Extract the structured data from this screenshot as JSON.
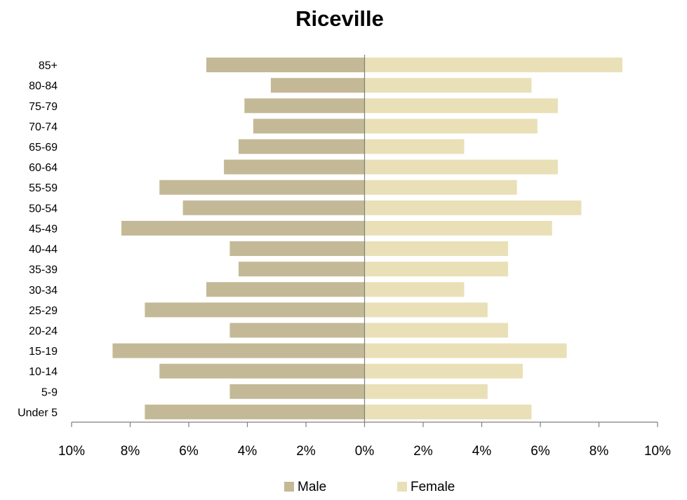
{
  "chart_data": {
    "type": "bar",
    "orientation": "horizontal",
    "title": "Riceville",
    "categories": [
      "Under 5",
      "5-9",
      "10-14",
      "15-19",
      "20-24",
      "25-29",
      "30-34",
      "35-39",
      "40-44",
      "45-49",
      "50-54",
      "55-59",
      "60-64",
      "65-69",
      "70-74",
      "75-79",
      "80-84",
      "85+"
    ],
    "series": [
      {
        "name": "Male",
        "color": "#c4b996",
        "values": [
          7.5,
          4.6,
          7.0,
          8.6,
          4.6,
          7.5,
          5.4,
          4.3,
          4.6,
          8.3,
          6.2,
          7.0,
          4.8,
          4.3,
          3.8,
          4.1,
          3.2,
          5.4
        ]
      },
      {
        "name": "Female",
        "color": "#e9e0b7",
        "values": [
          5.7,
          4.2,
          5.4,
          6.9,
          4.9,
          4.2,
          3.4,
          4.9,
          4.9,
          6.4,
          7.4,
          5.2,
          6.6,
          3.4,
          5.9,
          6.6,
          5.7,
          8.8
        ]
      }
    ],
    "xlim": [
      -10,
      10
    ],
    "x_ticks": [
      -10,
      -8,
      -6,
      -4,
      -2,
      0,
      2,
      4,
      6,
      8,
      10
    ],
    "x_tick_labels": [
      "10%",
      "8%",
      "6%",
      "4%",
      "2%",
      "0%",
      "2%",
      "4%",
      "6%",
      "8%",
      "10%"
    ],
    "grid": false,
    "legend_position": "bottom"
  }
}
